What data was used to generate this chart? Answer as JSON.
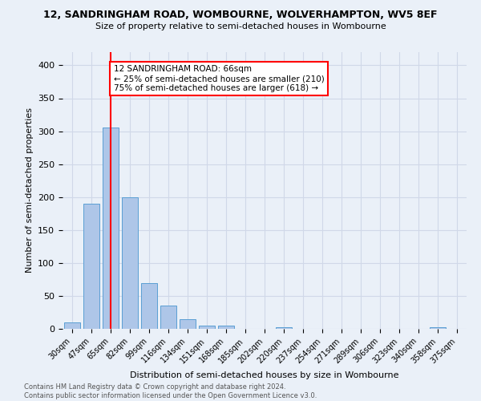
{
  "title1": "12, SANDRINGHAM ROAD, WOMBOURNE, WOLVERHAMPTON, WV5 8EF",
  "title2": "Size of property relative to semi-detached houses in Wombourne",
  "xlabel": "Distribution of semi-detached houses by size in Wombourne",
  "ylabel": "Number of semi-detached properties",
  "footer1": "Contains HM Land Registry data © Crown copyright and database right 2024.",
  "footer2": "Contains public sector information licensed under the Open Government Licence v3.0.",
  "bin_labels": [
    "30sqm",
    "47sqm",
    "65sqm",
    "82sqm",
    "99sqm",
    "116sqm",
    "134sqm",
    "151sqm",
    "168sqm",
    "185sqm",
    "202sqm",
    "220sqm",
    "237sqm",
    "254sqm",
    "271sqm",
    "289sqm",
    "306sqm",
    "323sqm",
    "340sqm",
    "358sqm",
    "375sqm"
  ],
  "bar_values": [
    10,
    190,
    305,
    200,
    70,
    35,
    15,
    5,
    5,
    0,
    0,
    3,
    0,
    0,
    0,
    0,
    0,
    0,
    0,
    3,
    0
  ],
  "bar_color": "#aec6e8",
  "bar_edge_color": "#5a9fd4",
  "property_line_x": 2,
  "property_line_color": "red",
  "annotation_text": "12 SANDRINGHAM ROAD: 66sqm\n← 25% of semi-detached houses are smaller (210)\n75% of semi-detached houses are larger (618) →",
  "annotation_box_color": "white",
  "annotation_box_edge": "red",
  "ylim": [
    0,
    420
  ],
  "yticks": [
    0,
    50,
    100,
    150,
    200,
    250,
    300,
    350,
    400
  ],
  "grid_color": "#d0d8e8",
  "bg_color": "#eaf0f8"
}
